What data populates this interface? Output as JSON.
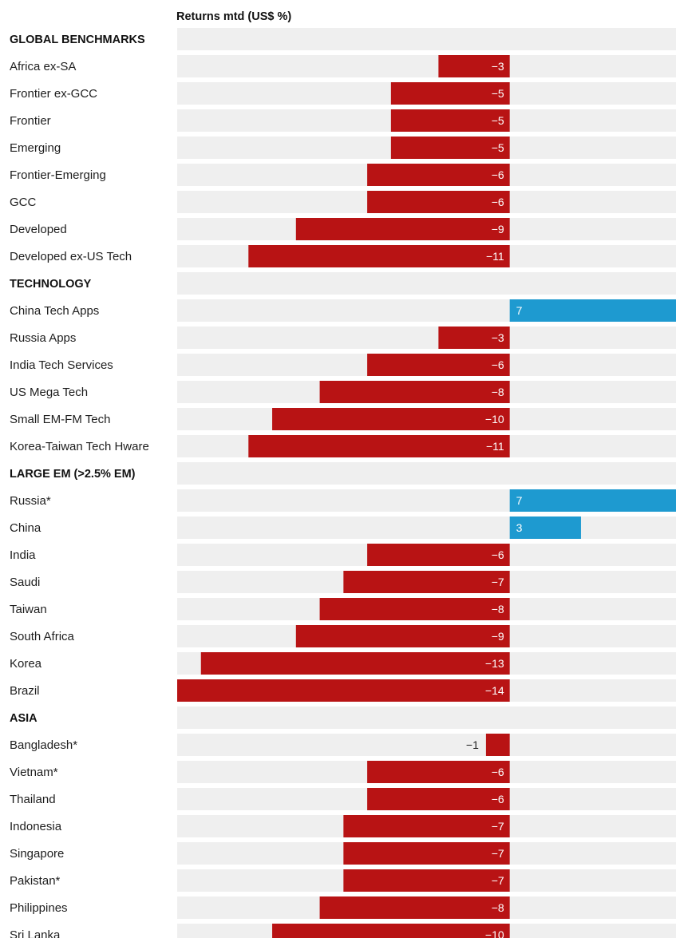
{
  "colors": {
    "negative": "#b81314",
    "positive": "#1e9ad0",
    "row_background": "#efefef",
    "text": "#1e1e1e"
  },
  "chart_data": {
    "type": "bar",
    "orientation": "horizontal",
    "title": "Returns mtd (US$ %)",
    "grid": false,
    "legend": "none",
    "xlim": [
      -14,
      7
    ],
    "rows": [
      {
        "kind": "section",
        "label": "GLOBAL BENCHMARKS"
      },
      {
        "kind": "bar",
        "label": "Africa ex-SA",
        "value": -3,
        "value_label": "−3"
      },
      {
        "kind": "bar",
        "label": "Frontier ex-GCC",
        "value": -5,
        "value_label": "−5"
      },
      {
        "kind": "bar",
        "label": "Frontier",
        "value": -5,
        "value_label": "−5"
      },
      {
        "kind": "bar",
        "label": "Emerging",
        "value": -5,
        "value_label": "−5"
      },
      {
        "kind": "bar",
        "label": "Frontier-Emerging",
        "value": -6,
        "value_label": "−6"
      },
      {
        "kind": "bar",
        "label": "GCC",
        "value": -6,
        "value_label": "−6"
      },
      {
        "kind": "bar",
        "label": "Developed",
        "value": -9,
        "value_label": "−9"
      },
      {
        "kind": "bar",
        "label": "Developed ex-US Tech",
        "value": -11,
        "value_label": "−11"
      },
      {
        "kind": "section",
        "label": "TECHNOLOGY"
      },
      {
        "kind": "bar",
        "label": "China Tech Apps",
        "value": 7,
        "value_label": "7"
      },
      {
        "kind": "bar",
        "label": "Russia Apps",
        "value": -3,
        "value_label": "−3"
      },
      {
        "kind": "bar",
        "label": "India Tech Services",
        "value": -6,
        "value_label": "−6"
      },
      {
        "kind": "bar",
        "label": "US Mega Tech",
        "value": -8,
        "value_label": "−8"
      },
      {
        "kind": "bar",
        "label": "Small EM-FM Tech",
        "value": -10,
        "value_label": "−10"
      },
      {
        "kind": "bar",
        "label": "Korea-Taiwan Tech Hware",
        "value": -11,
        "value_label": "−11"
      },
      {
        "kind": "section",
        "label": "LARGE EM (>2.5% EM)"
      },
      {
        "kind": "bar",
        "label": "Russia*",
        "value": 7,
        "value_label": "7"
      },
      {
        "kind": "bar",
        "label": "China",
        "value": 3,
        "value_label": "3"
      },
      {
        "kind": "bar",
        "label": "India",
        "value": -6,
        "value_label": "−6"
      },
      {
        "kind": "bar",
        "label": "Saudi",
        "value": -7,
        "value_label": "−7"
      },
      {
        "kind": "bar",
        "label": "Taiwan",
        "value": -8,
        "value_label": "−8"
      },
      {
        "kind": "bar",
        "label": "South Africa",
        "value": -9,
        "value_label": "−9"
      },
      {
        "kind": "bar",
        "label": "Korea",
        "value": -13,
        "value_label": "−13"
      },
      {
        "kind": "bar",
        "label": "Brazil",
        "value": -14,
        "value_label": "−14"
      },
      {
        "kind": "section",
        "label": "ASIA"
      },
      {
        "kind": "bar",
        "label": "Bangladesh*",
        "value": -1,
        "value_label": "−1"
      },
      {
        "kind": "bar",
        "label": "Vietnam*",
        "value": -6,
        "value_label": "−6"
      },
      {
        "kind": "bar",
        "label": "Thailand",
        "value": -6,
        "value_label": "−6"
      },
      {
        "kind": "bar",
        "label": "Indonesia",
        "value": -7,
        "value_label": "−7"
      },
      {
        "kind": "bar",
        "label": "Singapore",
        "value": -7,
        "value_label": "−7"
      },
      {
        "kind": "bar",
        "label": "Pakistan*",
        "value": -7,
        "value_label": "−7"
      },
      {
        "kind": "bar",
        "label": "Philippines",
        "value": -8,
        "value_label": "−8"
      },
      {
        "kind": "bar",
        "label": "Sri Lanka",
        "value": -10,
        "value_label": "−10"
      }
    ]
  }
}
